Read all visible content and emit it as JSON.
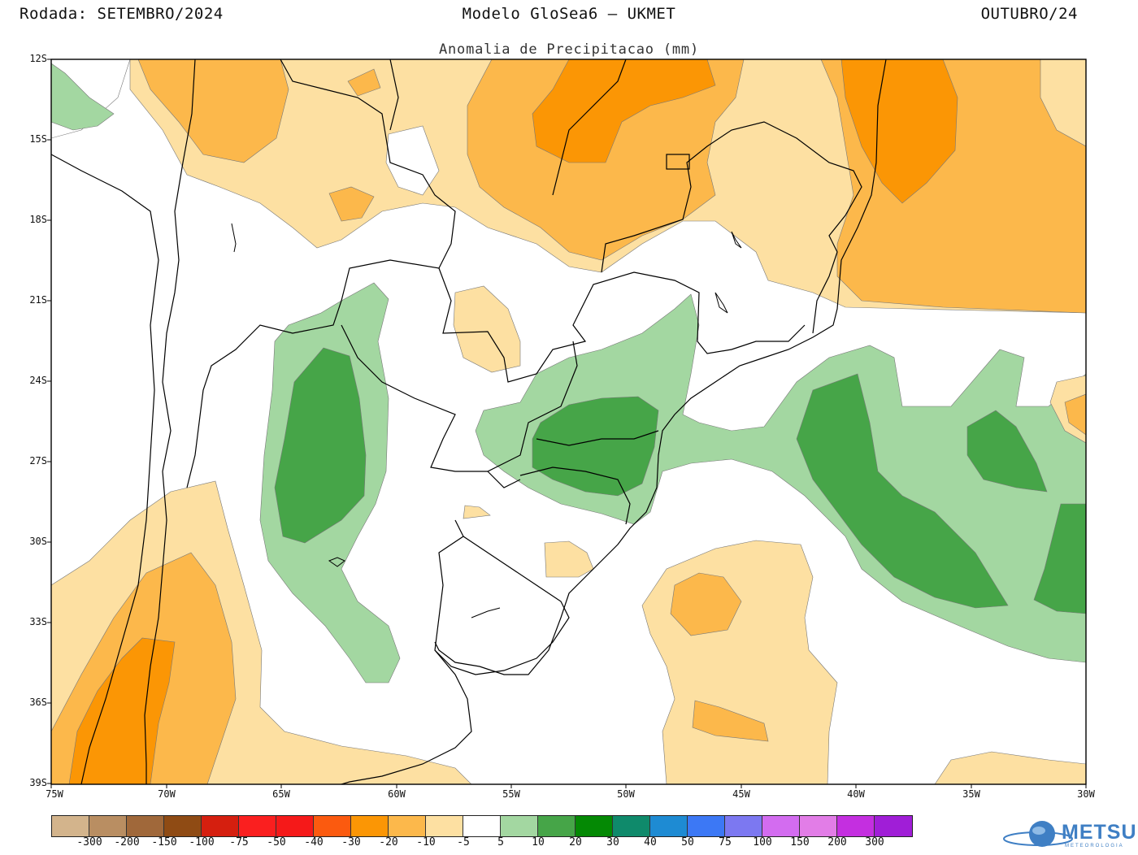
{
  "header": {
    "left": "Rodada: SETEMBRO/2024",
    "center": "Modelo GloSea6 – UKMET",
    "right": "OUTUBRO/24",
    "subtitle": "Anomalia de Precipitacao (mm)"
  },
  "axes": {
    "lat_labels": [
      "12S",
      "15S",
      "18S",
      "21S",
      "24S",
      "27S",
      "30S",
      "33S",
      "36S",
      "39S"
    ],
    "lon_labels": [
      "75W",
      "70W",
      "65W",
      "60W",
      "55W",
      "50W",
      "45W",
      "40W",
      "35W",
      "30W"
    ]
  },
  "colors": {
    "dry_light": "#fde0a2",
    "dry_mid": "#fcb84b",
    "dry_strong": "#fb9605",
    "wet_light": "#a3d7a1",
    "wet_mid": "#46a548",
    "border": "#000000"
  },
  "colorbar": {
    "colors": [
      "#d3b48c",
      "#b98e62",
      "#a0683a",
      "#8f4b14",
      "#d51f0f",
      "#fa1f1f",
      "#f51919",
      "#fb5a0f",
      "#fb9605",
      "#fcb84b",
      "#fde0a2",
      "#ffffff",
      "#a3d7a1",
      "#46a548",
      "#048904",
      "#0f8a6b",
      "#1e8bd3",
      "#3c78f5",
      "#7c78f1",
      "#d36cf0",
      "#e27de7",
      "#c42fe0",
      "#a01ed7"
    ],
    "labels": [
      "-300",
      "-200",
      "-150",
      "-100",
      "-75",
      "-50",
      "-40",
      "-30",
      "-20",
      "-10",
      "-5",
      "5",
      "10",
      "20",
      "30",
      "40",
      "50",
      "75",
      "100",
      "150",
      "200",
      "300"
    ]
  },
  "logo": {
    "name": "METSUL",
    "sub": "METEOROLOGIA",
    "icon": "globe-icon"
  }
}
